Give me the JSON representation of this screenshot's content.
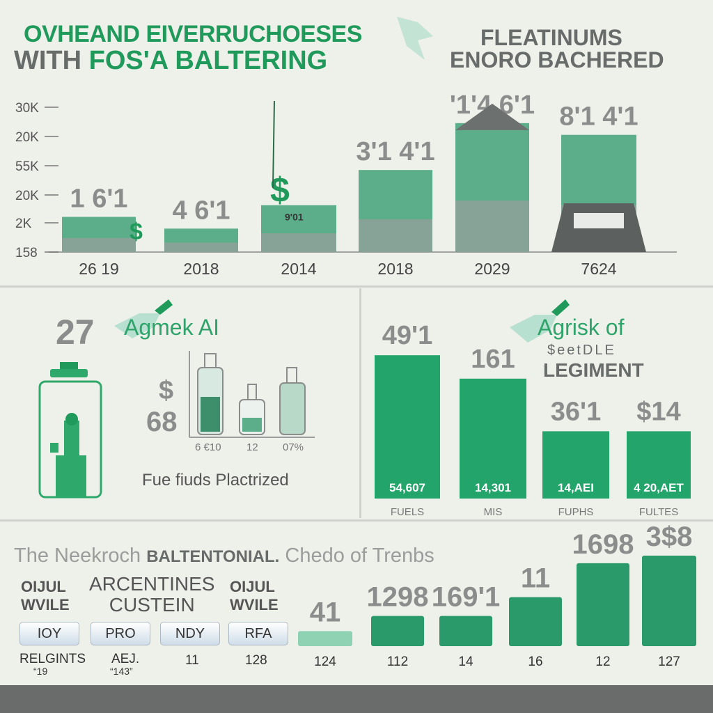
{
  "colors": {
    "green": "#1f9a5a",
    "teal": "#5cae8a",
    "gray": "#8a8d8b",
    "dark": "#676b69"
  },
  "header": {
    "title_line1": "OVHEAND EIVERRUCHOESES",
    "title_line2_a": "WITH",
    "title_line2_b": "FOS'A",
    "title_line2_c": "BALTERING",
    "right_line1": "FLEATINUMS",
    "right_line2": "ENORO BACHERED"
  },
  "chart_data": [
    {
      "type": "bar",
      "name": "top",
      "y_ticks": [
        "30K",
        "20K",
        "55K",
        "20K",
        "2K",
        "158"
      ],
      "categories": [
        "26 19",
        "2018",
        "2014",
        "2018",
        "2029",
        "7624"
      ],
      "value_labels": [
        "1 6'1",
        "4 6'1",
        "",
        "3'1 4'1",
        "'1'4 6'1",
        "8'1 4'1"
      ],
      "values": [
        3,
        2,
        4,
        7,
        11,
        10
      ],
      "ylim": [
        0,
        12
      ],
      "inner_label": "9'01"
    },
    {
      "type": "bar",
      "name": "mid-right",
      "categories": [
        "FUELS",
        "MIS",
        "FUPHS",
        "FULTES"
      ],
      "value_labels": [
        "49'1",
        "161",
        "36'1",
        "$14"
      ],
      "inner_labels": [
        "54,607",
        "14,301",
        "14,AEI",
        "4 20,AET"
      ],
      "values": [
        49,
        41,
        23,
        23
      ],
      "ylim": [
        0,
        50
      ]
    },
    {
      "type": "bar",
      "name": "bottom",
      "categories": [
        "124",
        "112",
        "14",
        "16",
        "12",
        "127"
      ],
      "value_labels": [
        "41",
        "1298",
        "169'1",
        "11",
        "1698",
        "3$8"
      ],
      "values": [
        2,
        4,
        4,
        6.5,
        11,
        12
      ],
      "ylim": [
        0,
        12
      ]
    }
  ],
  "mid_left": {
    "big_num": "27",
    "subtitle": "Agmek AI",
    "money_1": "$",
    "money_2": "68",
    "bottle_labels": [
      "6 €10",
      "12",
      "07%"
    ],
    "caption": "Fue fiuds Plactrized"
  },
  "mid_right": {
    "subtitle": "Agrisk  of",
    "sub2": "$eetDLE",
    "sub3": "LEGIMENT"
  },
  "bottom": {
    "heading_a": "The Neekroch",
    "heading_b": "BALTENTONIAL.",
    "heading_c": "Chedo of Trenbs",
    "col1_a": "OIJUL",
    "col1_b": "WVILE",
    "col2_a": "ARCENTINES",
    "col2_b": "CUSTEIN",
    "col3_a": "OIJUL",
    "col3_b": "WVILE",
    "pills": [
      "IOY",
      "PRO",
      "NDY",
      "RFA"
    ],
    "under": [
      "RELGINTS",
      "AEJ.",
      "11",
      "128"
    ],
    "under2": [
      "“19",
      "“143”"
    ]
  }
}
